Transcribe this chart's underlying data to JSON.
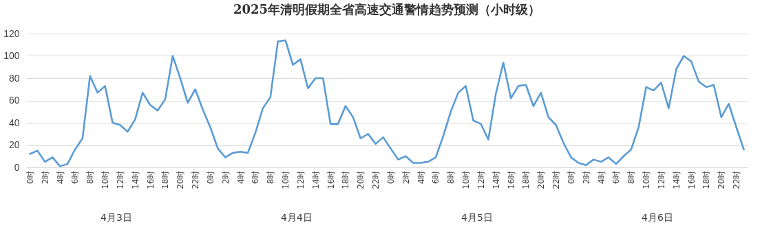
{
  "chart_data": {
    "type": "line",
    "title": "2025年清明假期全省高速交通警情趋势预测（小时级）",
    "categories": [
      "0时",
      null,
      "2时",
      null,
      "4时",
      null,
      "6时",
      null,
      "8时",
      null,
      "10时",
      null,
      "12时",
      null,
      "14时",
      null,
      "16时",
      null,
      "18时",
      null,
      "20时",
      null,
      "22时",
      null,
      "0时",
      null,
      "2时",
      null,
      "4时",
      null,
      "6时",
      null,
      "8时",
      null,
      "10时",
      null,
      "12时",
      null,
      "14时",
      null,
      "16时",
      null,
      "18时",
      null,
      "20时",
      null,
      "22时",
      null,
      "0时",
      null,
      "2时",
      null,
      "4时",
      null,
      "6时",
      null,
      "8时",
      null,
      "10时",
      null,
      "12时",
      null,
      "14时",
      null,
      "16时",
      null,
      "18时",
      null,
      "20时",
      null,
      "22时",
      null,
      "0时",
      null,
      "2时",
      null,
      "4时",
      null,
      "6时",
      null,
      "8时",
      null,
      "10时",
      null,
      "12时",
      null,
      "14时",
      null,
      "16时",
      null,
      "18时",
      null,
      "20时",
      null,
      "22时",
      null
    ],
    "series": [
      {
        "color": "#5b9bd5",
        "values": [
          12,
          15,
          5,
          9,
          1,
          3,
          16,
          26,
          82,
          67,
          73,
          40,
          38,
          32,
          43,
          67,
          56,
          51,
          61,
          100,
          80,
          58,
          70,
          52,
          36,
          17,
          9,
          13,
          14,
          13,
          31,
          53,
          63,
          113,
          114,
          92,
          97,
          71,
          80,
          80,
          39,
          39,
          55,
          45,
          26,
          30,
          21,
          27,
          17,
          7,
          10,
          4,
          4,
          5,
          9,
          28,
          50,
          67,
          73,
          42,
          39,
          25,
          66,
          94,
          62,
          73,
          74,
          55,
          67,
          45,
          38,
          22,
          9,
          4,
          2,
          7,
          5,
          9,
          3,
          10,
          16,
          36,
          72,
          69,
          76,
          53,
          88,
          100,
          95,
          77,
          72,
          74,
          45,
          57,
          36,
          16
        ]
      }
    ],
    "ylim": [
      0,
      120
    ],
    "yticks": [
      0,
      20,
      40,
      60,
      80,
      100,
      120
    ],
    "grid": "y",
    "annotations": [
      "4月3日",
      "4月4日",
      "4月5日",
      "4月6日"
    ]
  }
}
